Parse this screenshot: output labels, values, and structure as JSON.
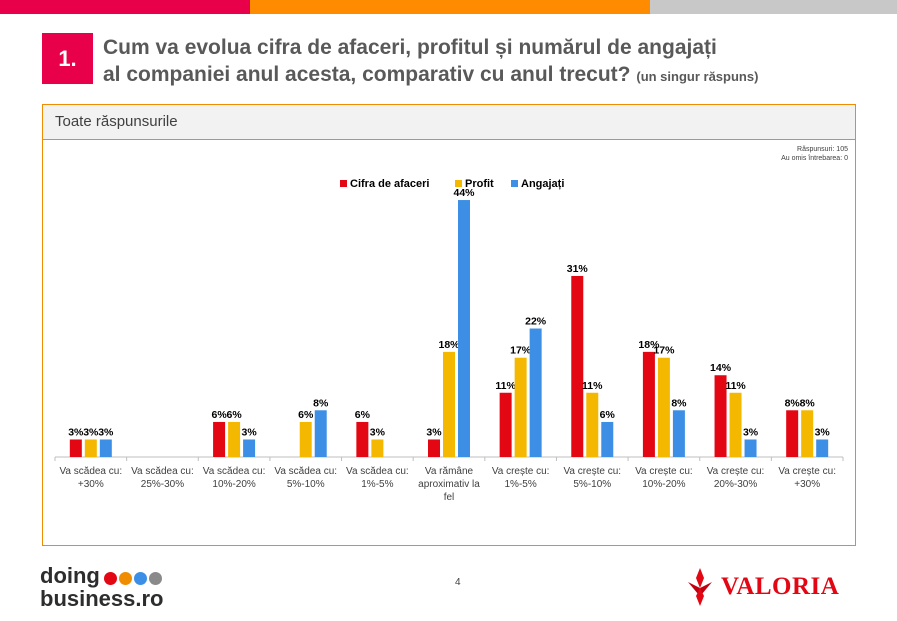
{
  "header": {
    "number": "1.",
    "title_line1": "Cum va evolua cifra de afaceri, profitul și numărul de angajați",
    "title_line2": "al companiei anul acesta, comparativ cu anul trecut?",
    "title_note": "(un singur răspuns)"
  },
  "colors": {
    "bar_red": "#e8004a",
    "bar_orange": "#ff8c00",
    "bar_gray": "#c8c8c8",
    "series_red": "#e30613",
    "series_yellow": "#f5b800",
    "series_blue": "#3d8fe6",
    "panel_border": "#f08c00"
  },
  "panel": {
    "title": "Toate răspunsurile",
    "respondents": "Răspunsuri: 105",
    "omitted": "Au omis întrebarea: 0"
  },
  "chart_data": {
    "type": "bar",
    "categories": [
      "Va scădea cu: +30%",
      "Va scădea cu: 25%-30%",
      "Va scădea cu: 10%-20%",
      "Va scădea cu: 5%-10%",
      "Va scădea cu: 1%-5%",
      "Va rămâne aproximativ la fel",
      "Va crește cu: 1%-5%",
      "Va crește cu: 5%-10%",
      "Va crește cu: 10%-20%",
      "Va crește cu: 20%-30%",
      "Va crește cu: +30%"
    ],
    "category_lines": [
      [
        "Va scădea cu:",
        "+30%"
      ],
      [
        "Va scădea cu:",
        "25%-30%"
      ],
      [
        "Va scădea cu:",
        "10%-20%"
      ],
      [
        "Va scădea cu:",
        "5%-10%"
      ],
      [
        "Va scădea cu:",
        "1%-5%"
      ],
      [
        "Va rămâne",
        "aproximativ la",
        "fel"
      ],
      [
        "Va crește cu:",
        "1%-5%"
      ],
      [
        "Va crește cu:",
        "5%-10%"
      ],
      [
        "Va crește cu:",
        "10%-20%"
      ],
      [
        "Va crește cu:",
        "20%-30%"
      ],
      [
        "Va crește cu:",
        "+30%"
      ]
    ],
    "series": [
      {
        "name": "Cifra de afaceri",
        "color": "#e30613",
        "values": [
          3,
          0,
          6,
          0,
          6,
          3,
          11,
          31,
          18,
          14,
          8
        ]
      },
      {
        "name": "Profit",
        "color": "#f5b800",
        "values": [
          3,
          0,
          6,
          6,
          3,
          18,
          17,
          11,
          17,
          11,
          8
        ]
      },
      {
        "name": "Angajați",
        "color": "#3d8fe6",
        "values": [
          3,
          0,
          3,
          8,
          0,
          44,
          22,
          6,
          8,
          3,
          3
        ]
      }
    ],
    "value_suffix": "%",
    "ylim": [
      0,
      50
    ],
    "legend": "top-center",
    "grid": false
  },
  "footer": {
    "logo_line1": "doing",
    "logo_line2": "business.ro",
    "logo_dot_colors": [
      "#e30613",
      "#f08c00",
      "#3d8fe6",
      "#8a8a8a"
    ],
    "page": "4",
    "brand": "VALORIA"
  }
}
